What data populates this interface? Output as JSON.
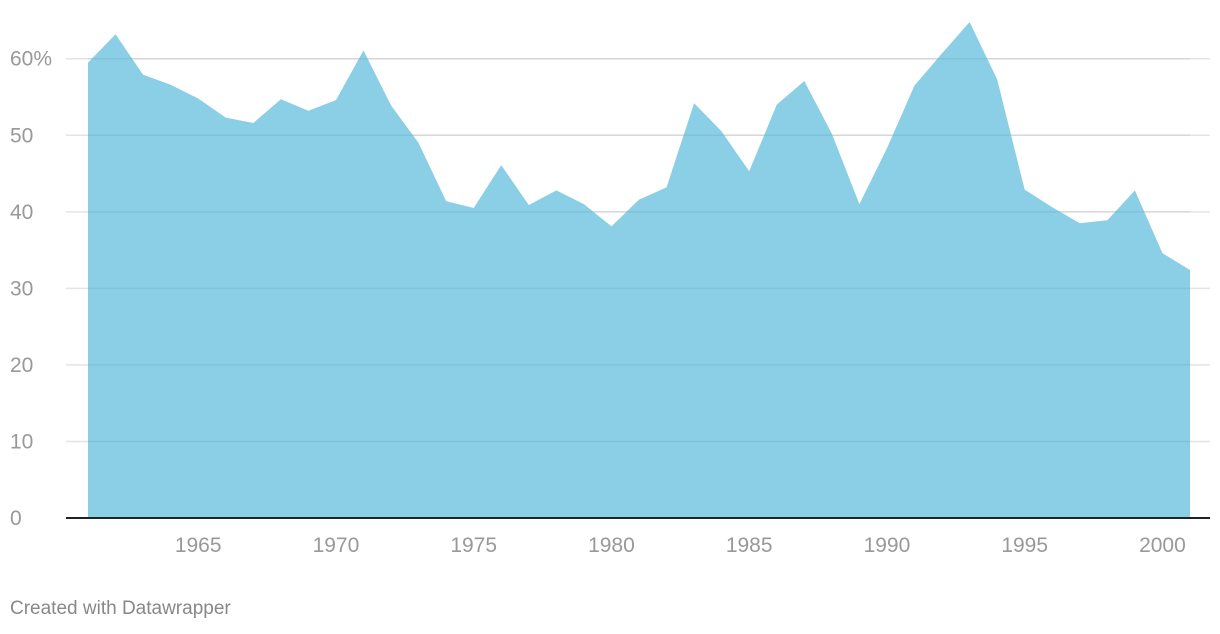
{
  "chart_data": {
    "type": "area",
    "title": "",
    "xlabel": "",
    "ylabel": "",
    "x": [
      1961,
      1962,
      1963,
      1964,
      1965,
      1966,
      1967,
      1968,
      1969,
      1970,
      1971,
      1972,
      1973,
      1974,
      1975,
      1976,
      1977,
      1978,
      1979,
      1980,
      1981,
      1982,
      1983,
      1984,
      1985,
      1986,
      1987,
      1988,
      1989,
      1990,
      1991,
      1992,
      1993,
      1994,
      1995,
      1996,
      1997,
      1998,
      1999,
      2000,
      2001
    ],
    "series": [
      {
        "values": [
          59.5,
          63.2,
          57.9,
          56.6,
          54.8,
          52.3,
          51.6,
          54.7,
          53.2,
          54.6,
          61.1,
          53.9,
          49.0,
          41.4,
          40.5,
          46.1,
          40.9,
          42.8,
          41.0,
          38.1,
          41.6,
          43.2,
          54.2,
          50.5,
          45.3,
          54.0,
          57.1,
          50.2,
          41.0,
          48.3,
          56.5,
          60.7,
          64.8,
          57.3,
          42.9,
          40.6,
          38.5,
          38.9,
          42.8,
          34.6,
          32.4
        ],
        "color": "#8acfe6"
      }
    ],
    "xlim": [
      1961,
      2001
    ],
    "ylim": [
      0,
      64.8
    ],
    "y_ticks": [
      0,
      10,
      20,
      30,
      40,
      50,
      60
    ],
    "y_tick_labels": [
      "0",
      "10",
      "20",
      "30",
      "40",
      "50",
      "60%"
    ],
    "x_ticks": [
      1965,
      1970,
      1975,
      1980,
      1985,
      1990,
      1995,
      2000
    ],
    "x_tick_labels": [
      "1965",
      "1970",
      "1975",
      "1980",
      "1985",
      "1990",
      "1995",
      "2000"
    ],
    "grid": true,
    "legend": "none",
    "colors": {
      "area": "#8acfe6",
      "gridline": "#e4e4e4",
      "baseline": "#222222",
      "tick_text": "#999999"
    }
  },
  "footer": {
    "credit": "Created with Datawrapper"
  }
}
